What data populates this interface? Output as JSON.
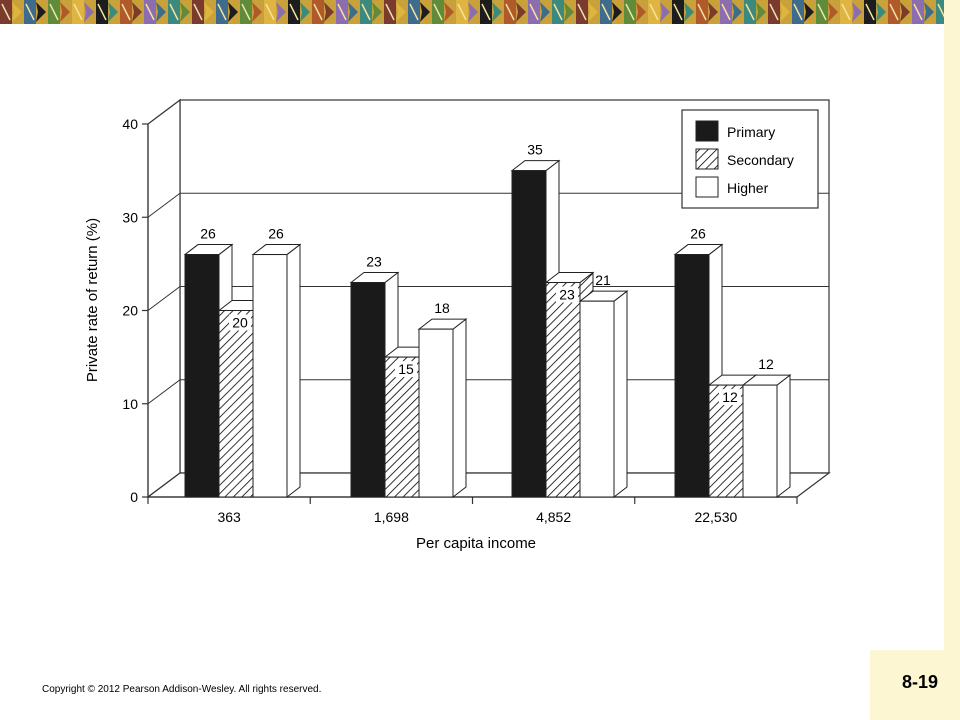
{
  "slide": {
    "copyright": "Copyright © 2012 Pearson Addison-Wesley. All rights reserved.",
    "page_number": "8-19",
    "colors": {
      "banner_bg": "#c8a13a",
      "side_bar": "#fdf6d3",
      "page_box": "#fdf6d3"
    }
  },
  "chart_data": {
    "type": "bar",
    "title": "",
    "xlabel": "Per capita income",
    "ylabel": "Private rate of return (%)",
    "ylim": [
      0,
      40
    ],
    "yticks": [
      0,
      10,
      20,
      30,
      40
    ],
    "categories": [
      "363",
      "1,698",
      "4,852",
      "22,530"
    ],
    "series": [
      {
        "name": "Primary",
        "values": [
          26,
          23,
          35,
          26
        ],
        "fill": "#1a1a1a"
      },
      {
        "name": "Secondary",
        "values": [
          20,
          15,
          23,
          12
        ],
        "fill": "hatch"
      },
      {
        "name": "Higher",
        "values": [
          26,
          18,
          21,
          12
        ],
        "fill": "#ffffff"
      }
    ],
    "grid": true,
    "legend_position": "top-right"
  }
}
